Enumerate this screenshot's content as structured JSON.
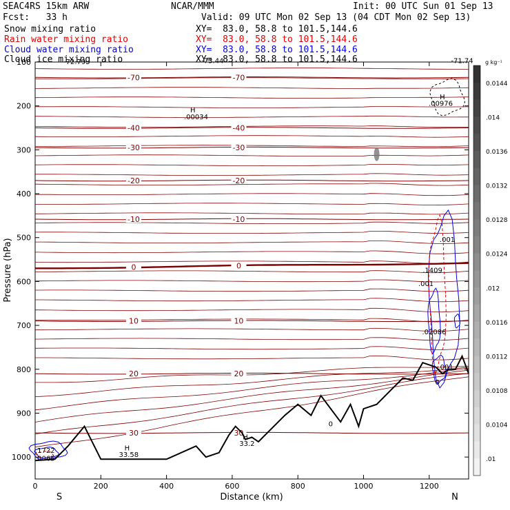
{
  "header": {
    "model": "SEAC4RS 15km ARW",
    "org": "NCAR/MMM",
    "init": "Init: 00 UTC Sun 01 Sep 13",
    "fcst": "Fcst:   33 h",
    "valid": "Valid: 09 UTC Mon 02 Sep 13 (04 CDT Mon 02 Sep 13)",
    "fields": [
      {
        "name": "Snow mixing ratio",
        "xy": "XY=  83.0, 58.8 to 101.5,144.6",
        "color": "#000000"
      },
      {
        "name": "Rain water mixing ratio",
        "xy": "XY=  83.0, 58.8 to 101.5,144.6",
        "color": "#e00000"
      },
      {
        "name": "Cloud water mixing ratio",
        "xy": "XY=  83.0, 58.8 to 101.5,144.6",
        "color": "#0000dd"
      },
      {
        "name": "Cloud ice mixing ratio",
        "xy": "XY=  83.0, 58.8 to 101.5,144.6",
        "color": "#000000"
      }
    ]
  },
  "colors": {
    "temperature": "#800000",
    "zero_isotherm": "#7a0000",
    "rain": "#e00000",
    "cloud_water": "#0000dd",
    "terrain": "#000000",
    "colorbar_dark": "#333333"
  },
  "chart_data": {
    "type": "cross-section",
    "xlabel": "Distance (km)",
    "ylabel": "Pressure (hPa)",
    "xlim": [
      0,
      1320
    ],
    "ylim": [
      1050,
      100
    ],
    "x_ticks": [
      "0",
      "200",
      "400",
      "600",
      "800",
      "1000",
      "1200"
    ],
    "y_ticks": [
      "100",
      "200",
      "300",
      "400",
      "500",
      "600",
      "700",
      "800",
      "900",
      "1000"
    ],
    "end_labels": {
      "left": "S",
      "right": "N"
    },
    "colorbar": {
      "unit": "g kg⁻¹",
      "tick_labels": [
        "0.0144",
        ".014",
        "0.0136",
        "0.0132",
        "0.0128",
        "0.0124",
        ".012",
        "0.0116",
        "0.0112",
        "0.0108",
        "0.0104",
        ".01"
      ]
    },
    "temperature_isotherms": [
      {
        "level": -70,
        "label": "-70",
        "p": 135
      },
      {
        "level": -40,
        "label": "-40",
        "p": 250
      },
      {
        "level": -30,
        "label": "-30",
        "p": 295
      },
      {
        "level": -20,
        "label": "-20",
        "p": 370
      },
      {
        "level": -10,
        "label": "-10",
        "p": 458
      },
      {
        "level": 0,
        "label": "0",
        "p": 570
      },
      {
        "level": 10,
        "label": "10",
        "p": 690
      },
      {
        "level": 20,
        "label": "20",
        "p": 810
      },
      {
        "level": 30,
        "label": "30",
        "p": 945
      }
    ],
    "extrema_labels": [
      {
        "text": "-72.79",
        "x": 120,
        "p": 105
      },
      {
        "text": "-73.44",
        "x": 540,
        "p": 102
      },
      {
        "text": "-71.74",
        "x": 1300,
        "p": 102
      },
      {
        "text": "H",
        "x": 480,
        "p": 215
      },
      {
        "text": ".00034",
        "x": 490,
        "p": 230
      },
      {
        "text": "H",
        "x": 1240,
        "p": 185
      },
      {
        "text": ".00976",
        "x": 1235,
        "p": 200
      },
      {
        "text": ".001",
        "x": 1255,
        "p": 510
      },
      {
        "text": ".1409",
        "x": 1210,
        "p": 580
      },
      {
        "text": ".001",
        "x": 1190,
        "p": 610
      },
      {
        "text": ".02086",
        "x": 1215,
        "p": 720
      },
      {
        "text": ".001",
        "x": 1250,
        "p": 800
      },
      {
        "text": "0",
        "x": 1225,
        "p": 835
      },
      {
        "text": "H",
        "x": 280,
        "p": 985
      },
      {
        "text": "33.58",
        "x": 285,
        "p": 1000
      },
      {
        "text": "H",
        "x": 640,
        "p": 960
      },
      {
        "text": "33.2",
        "x": 645,
        "p": 975
      },
      {
        "text": "0",
        "x": 900,
        "p": 930
      },
      {
        "text": ".1722",
        "x": 30,
        "p": 990
      },
      {
        "text": ".0065",
        "x": 30,
        "p": 1008
      }
    ],
    "terrain": {
      "x": [
        0,
        60,
        100,
        150,
        200,
        260,
        320,
        400,
        460,
        490,
        520,
        560,
        590,
        610,
        630,
        640,
        660,
        680,
        720,
        760,
        800,
        840,
        870,
        900,
        930,
        960,
        985,
        1000,
        1040,
        1080,
        1120,
        1150,
        1180,
        1200,
        1220,
        1240,
        1260,
        1280,
        1300,
        1320
      ],
      "p": [
        1008,
        1005,
        975,
        930,
        1005,
        1005,
        1005,
        1005,
        985,
        975,
        1000,
        990,
        950,
        930,
        945,
        960,
        955,
        965,
        935,
        905,
        880,
        905,
        860,
        890,
        920,
        880,
        930,
        890,
        880,
        850,
        820,
        825,
        785,
        790,
        795,
        810,
        800,
        800,
        770,
        810
      ]
    }
  }
}
